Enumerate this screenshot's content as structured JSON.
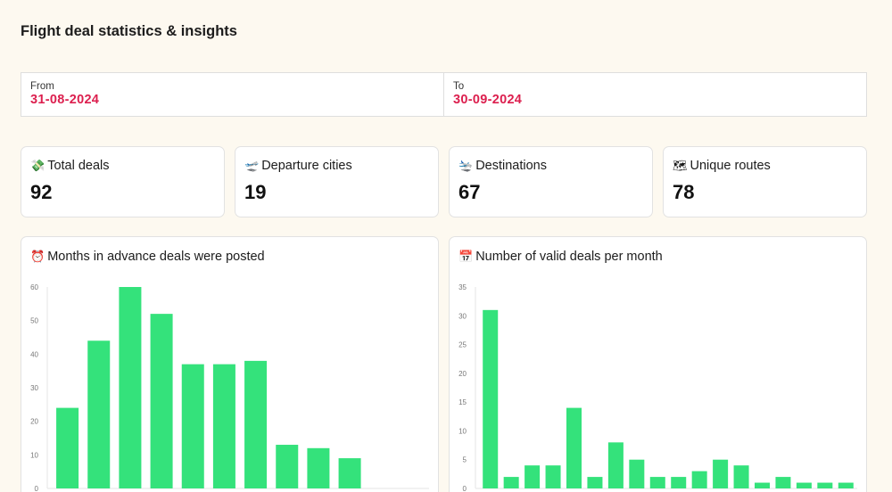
{
  "header": {
    "title": "Flight deal statistics & insights"
  },
  "date_range": {
    "from": {
      "label": "From",
      "value": "31-08-2024"
    },
    "to": {
      "label": "To",
      "value": "30-09-2024"
    },
    "accent_color": "#dc1f4e"
  },
  "stats": [
    {
      "icon": "money-with-wings-icon",
      "glyph": "💸",
      "label": "Total deals",
      "value": "92"
    },
    {
      "icon": "airplane-departure-icon",
      "glyph": "🛫",
      "label": "Departure cities",
      "value": "19"
    },
    {
      "icon": "airplane-arrival-icon",
      "glyph": "🛬",
      "label": "Destinations",
      "value": "67"
    },
    {
      "icon": "world-map-icon",
      "glyph": "🗺",
      "label": "Unique routes",
      "value": "78"
    }
  ],
  "chart_data": [
    {
      "type": "bar",
      "title": "Months in advance deals were posted",
      "title_icon": "alarm-clock-icon",
      "title_glyph": "⏰",
      "xlabel": "",
      "ylabel": "",
      "ylim": [
        0,
        60
      ],
      "yticks": [
        0,
        10,
        20,
        30,
        40,
        50,
        60
      ],
      "grid": false,
      "values": [
        24,
        44,
        60,
        52,
        37,
        37,
        38,
        13,
        12,
        9
      ],
      "color": "#34e27b"
    },
    {
      "type": "bar",
      "title": "Number of valid deals per month",
      "title_icon": "calendar-icon",
      "title_glyph": "📅",
      "xlabel": "",
      "ylabel": "",
      "ylim": [
        0,
        35
      ],
      "yticks": [
        0,
        5,
        10,
        15,
        20,
        25,
        30,
        35
      ],
      "grid": false,
      "values": [
        31,
        2,
        4,
        4,
        14,
        2,
        8,
        5,
        2,
        2,
        3,
        5,
        4,
        1,
        2,
        1,
        1,
        1
      ],
      "color": "#34e27b"
    }
  ]
}
